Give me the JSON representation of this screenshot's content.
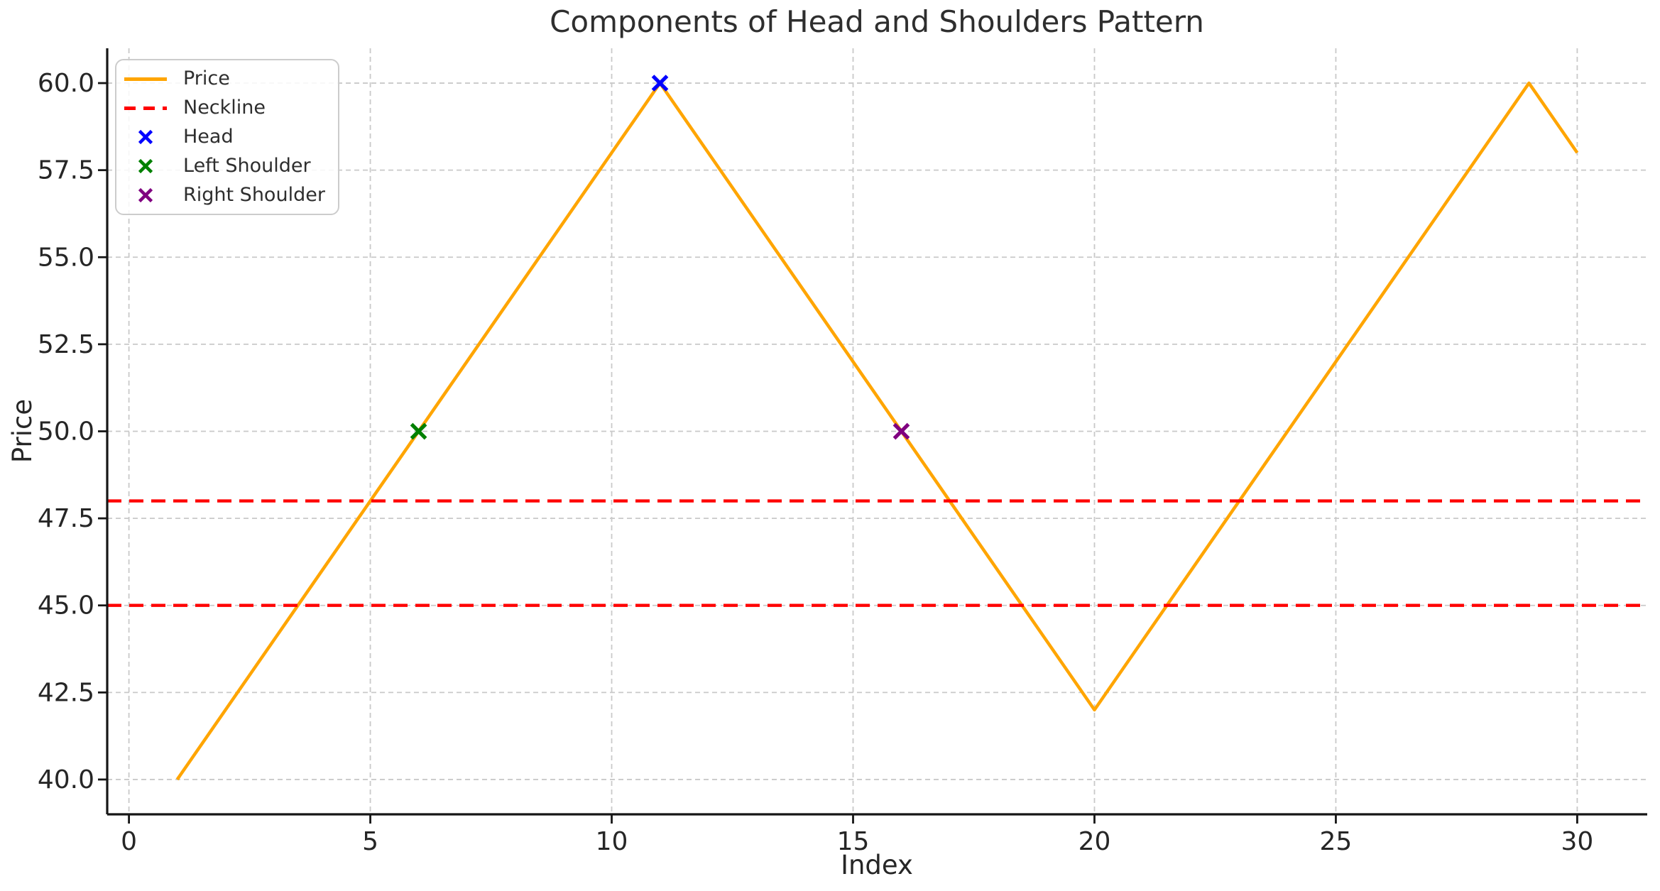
{
  "figure": {
    "background": "#ffffff"
  },
  "chart_data": {
    "type": "line",
    "title": "Components of Head and Shoulders Pattern",
    "xlabel": "Index",
    "ylabel": "Price",
    "xlim": [
      -0.45,
      31.45
    ],
    "ylim": [
      39,
      61
    ],
    "grid": true,
    "legend_position": "upper left",
    "xticks": {
      "values": [
        0,
        5,
        10,
        15,
        20,
        25,
        30
      ],
      "labels": [
        "0",
        "5",
        "10",
        "15",
        "20",
        "25",
        "30"
      ]
    },
    "yticks": {
      "values": [
        40,
        42.5,
        45,
        47.5,
        50,
        52.5,
        55,
        57.5,
        60
      ],
      "labels": [
        "40.0",
        "42.5",
        "45.0",
        "47.5",
        "50.0",
        "52.5",
        "55.0",
        "57.5",
        "60.0"
      ]
    },
    "series": [
      {
        "name": "Price",
        "type": "line",
        "color": "#FFA500",
        "x": [
          1,
          2,
          3,
          4,
          5,
          6,
          7,
          8,
          9,
          10,
          11,
          12,
          13,
          14,
          15,
          16,
          17,
          18,
          19,
          20,
          21,
          22,
          23,
          24,
          25,
          26,
          27,
          28,
          29,
          30
        ],
        "y": [
          40,
          42,
          44,
          46,
          48,
          50,
          52,
          54,
          56,
          58,
          60,
          58,
          56,
          54,
          52,
          50,
          48,
          46,
          44,
          42,
          44,
          46,
          48,
          50,
          52,
          54,
          56,
          58,
          60,
          58
        ]
      },
      {
        "name": "Neckline",
        "type": "hline",
        "color": "#FF0000",
        "linestyle": "dashed",
        "values": [
          48,
          45
        ]
      },
      {
        "name": "Head",
        "type": "scatter",
        "marker": "x",
        "color": "#0000FF",
        "points": [
          [
            11,
            60
          ]
        ]
      },
      {
        "name": "Left Shoulder",
        "type": "scatter",
        "marker": "x",
        "color": "#008000",
        "points": [
          [
            6,
            50
          ]
        ]
      },
      {
        "name": "Right Shoulder",
        "type": "scatter",
        "marker": "x",
        "color": "#800080",
        "points": [
          [
            16,
            50
          ]
        ]
      }
    ]
  }
}
